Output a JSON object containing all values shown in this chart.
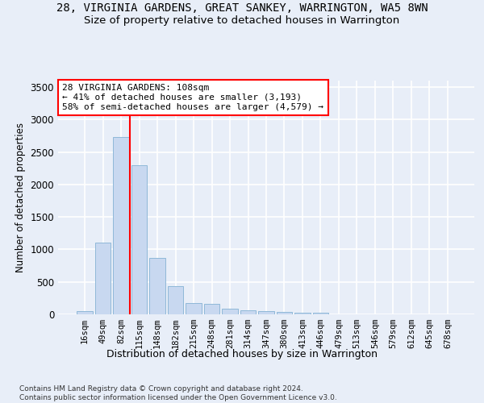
{
  "title_line1": "28, VIRGINIA GARDENS, GREAT SANKEY, WARRINGTON, WA5 8WN",
  "title_line2": "Size of property relative to detached houses in Warrington",
  "xlabel": "Distribution of detached houses by size in Warrington",
  "ylabel": "Number of detached properties",
  "footer": "Contains HM Land Registry data © Crown copyright and database right 2024.\nContains public sector information licensed under the Open Government Licence v3.0.",
  "categories": [
    "16sqm",
    "49sqm",
    "82sqm",
    "115sqm",
    "148sqm",
    "182sqm",
    "215sqm",
    "248sqm",
    "281sqm",
    "314sqm",
    "347sqm",
    "380sqm",
    "413sqm",
    "446sqm",
    "479sqm",
    "513sqm",
    "546sqm",
    "579sqm",
    "612sqm",
    "645sqm",
    "678sqm"
  ],
  "values": [
    50,
    1100,
    2730,
    2300,
    875,
    430,
    170,
    165,
    90,
    60,
    50,
    35,
    25,
    20,
    0,
    0,
    0,
    0,
    0,
    0,
    0
  ],
  "bar_color": "#c8d8f0",
  "bar_edge_color": "#8fb8d8",
  "vline_index": 2.5,
  "vline_color": "red",
  "annotation_text": "28 VIRGINIA GARDENS: 108sqm\n← 41% of detached houses are smaller (3,193)\n58% of semi-detached houses are larger (4,579) →",
  "annotation_box_color": "white",
  "annotation_box_edge_color": "red",
  "ylim": [
    0,
    3600
  ],
  "yticks": [
    0,
    500,
    1000,
    1500,
    2000,
    2500,
    3000,
    3500
  ],
  "bg_color": "#e8eef8",
  "plot_bg_color": "#e8eef8",
  "grid_color": "white",
  "title_fontsize": 10,
  "subtitle_fontsize": 9.5,
  "footer_fontsize": 6.5
}
